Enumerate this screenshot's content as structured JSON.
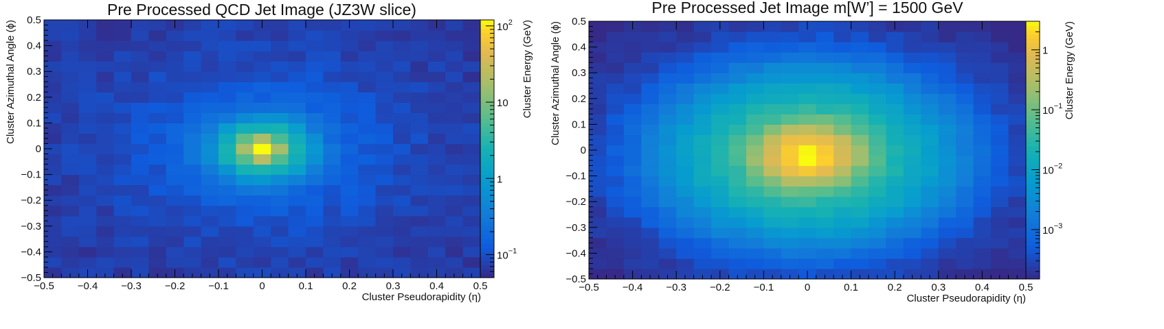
{
  "chart_data": [
    {
      "type": "heatmap",
      "title": "Pre Processed QCD Jet Image (JZ3W slice)",
      "xlabel": "Cluster Pseudorapidity (η)",
      "ylabel": "Cluster Azimuthal Angle (ϕ)",
      "colorbar_label": "Cluster Energy (GeV)",
      "xlim": [
        -0.5,
        0.5
      ],
      "ylim": [
        -0.5,
        0.5
      ],
      "x_tick_labels": [
        "−0.5",
        "−0.4",
        "−0.3",
        "−0.2",
        "−0.1",
        "0",
        "0.1",
        "0.2",
        "0.3",
        "0.4",
        "0.5"
      ],
      "y_tick_labels": [
        "−0.5",
        "−0.4",
        "−0.3",
        "−0.2",
        "−0.1",
        "0",
        "0.1",
        "0.2",
        "0.3",
        "0.4",
        "0.5"
      ],
      "bins": [
        25,
        25
      ],
      "peak": {
        "x": 0.0,
        "y": 0.0,
        "value": 150
      },
      "shape": "gaussian-core-with-power-law-tail",
      "colorbar": {
        "scale": "log",
        "range": [
          0.05,
          120
        ],
        "ticks": [
          {
            "value": 0.1,
            "label": "10",
            "exp": "−1"
          },
          {
            "value": 1,
            "label": "1",
            "exp": ""
          },
          {
            "value": 10,
            "label": "10",
            "exp": ""
          },
          {
            "value": 100,
            "label": "10",
            "exp": "2"
          }
        ]
      }
    },
    {
      "type": "heatmap",
      "title": "Pre Processed Jet Image m[W’] = 1500 GeV",
      "xlabel": "Cluster Pseudorapidity (η)",
      "ylabel": "Cluster Azimuthal Angle (ϕ)",
      "colorbar_label": "Cluster Energy (GeV)",
      "xlim": [
        -0.5,
        0.5
      ],
      "ylim": [
        -0.5,
        0.5
      ],
      "x_tick_labels": [
        "−0.5",
        "−0.4",
        "−0.3",
        "−0.2",
        "−0.1",
        "0",
        "0.1",
        "0.2",
        "0.3",
        "0.4",
        "0.5"
      ],
      "y_tick_labels": [
        "−0.5",
        "−0.4",
        "−0.3",
        "−0.2",
        "−0.1",
        "0",
        "0.1",
        "0.2",
        "0.3",
        "0.4",
        "0.5"
      ],
      "bins": [
        25,
        25
      ],
      "peak": {
        "x": 0.0,
        "y": -0.02,
        "value": 2.8
      },
      "shape": "broad-gaussian",
      "colorbar": {
        "scale": "log",
        "range": [
          0.00015,
          3
        ],
        "ticks": [
          {
            "value": 0.001,
            "label": "10",
            "exp": "−3"
          },
          {
            "value": 0.01,
            "label": "10",
            "exp": "−2"
          },
          {
            "value": 0.1,
            "label": "10",
            "exp": "−1"
          },
          {
            "value": 1,
            "label": "1",
            "exp": ""
          }
        ]
      }
    }
  ]
}
